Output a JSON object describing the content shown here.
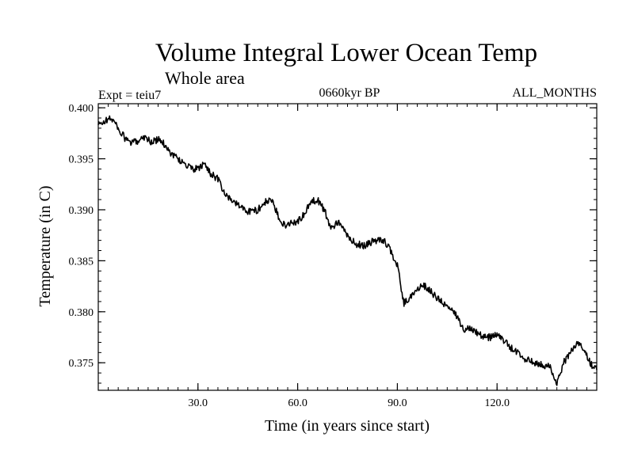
{
  "chart_data": {
    "type": "line",
    "title": "Volume Integral Lower Ocean Temp",
    "subtitle": "Whole area",
    "annotations": {
      "left": "Expt = teiu7",
      "center": "0660kyr BP",
      "right": "ALL_MONTHS"
    },
    "xlabel": "Time (in years since start)",
    "ylabel": "Temperature (in C)",
    "xlim": [
      0,
      150
    ],
    "ylim": [
      0.3723,
      0.4004
    ],
    "xticks": [
      {
        "value": 30,
        "label": "30.0"
      },
      {
        "value": 60,
        "label": "60.0"
      },
      {
        "value": 90,
        "label": "90.0"
      },
      {
        "value": 120,
        "label": "120.0"
      }
    ],
    "x_minor_step": 3,
    "yticks": [
      {
        "value": 0.375,
        "label": "0.375"
      },
      {
        "value": 0.38,
        "label": "0.380"
      },
      {
        "value": 0.385,
        "label": "0.385"
      },
      {
        "value": 0.39,
        "label": "0.390"
      },
      {
        "value": 0.395,
        "label": "0.395"
      },
      {
        "value": 0.4,
        "label": "0.400"
      }
    ],
    "y_minor_step": 0.001,
    "grid": false,
    "series": [
      {
        "name": "Volume Integral Lower Ocean Temp",
        "color": "#000000",
        "x": [
          0,
          2,
          4,
          6,
          8,
          10,
          12,
          14,
          16,
          18,
          20,
          22,
          24,
          26,
          28,
          30,
          32,
          34,
          36,
          38,
          40,
          42,
          44,
          46,
          48,
          50,
          52,
          54,
          56,
          58,
          60,
          62,
          64,
          66,
          68,
          70,
          72,
          74,
          76,
          78,
          80,
          82,
          84,
          86,
          88,
          90,
          92,
          94,
          96,
          98,
          100,
          102,
          104,
          106,
          108,
          110,
          112,
          114,
          116,
          118,
          120,
          122,
          124,
          126,
          128,
          130,
          132,
          134,
          136,
          138,
          140,
          142,
          144,
          146,
          148,
          150
        ],
        "y": [
          0.3983,
          0.3987,
          0.399,
          0.398,
          0.397,
          0.3965,
          0.3968,
          0.3972,
          0.3966,
          0.3969,
          0.3964,
          0.3955,
          0.395,
          0.3945,
          0.394,
          0.394,
          0.3945,
          0.3935,
          0.393,
          0.3915,
          0.391,
          0.3905,
          0.39,
          0.3898,
          0.39,
          0.3907,
          0.391,
          0.3895,
          0.3885,
          0.3887,
          0.3889,
          0.3895,
          0.3908,
          0.391,
          0.39,
          0.3882,
          0.3888,
          0.388,
          0.387,
          0.3866,
          0.3865,
          0.3868,
          0.387,
          0.387,
          0.386,
          0.3845,
          0.3808,
          0.3815,
          0.3822,
          0.3826,
          0.382,
          0.3813,
          0.3808,
          0.3802,
          0.3795,
          0.3782,
          0.3785,
          0.378,
          0.3775,
          0.3775,
          0.3778,
          0.3772,
          0.3765,
          0.376,
          0.3755,
          0.3751,
          0.375,
          0.3748,
          0.3746,
          0.3728,
          0.375,
          0.376,
          0.3768,
          0.3765,
          0.375,
          0.3743
        ]
      }
    ]
  }
}
